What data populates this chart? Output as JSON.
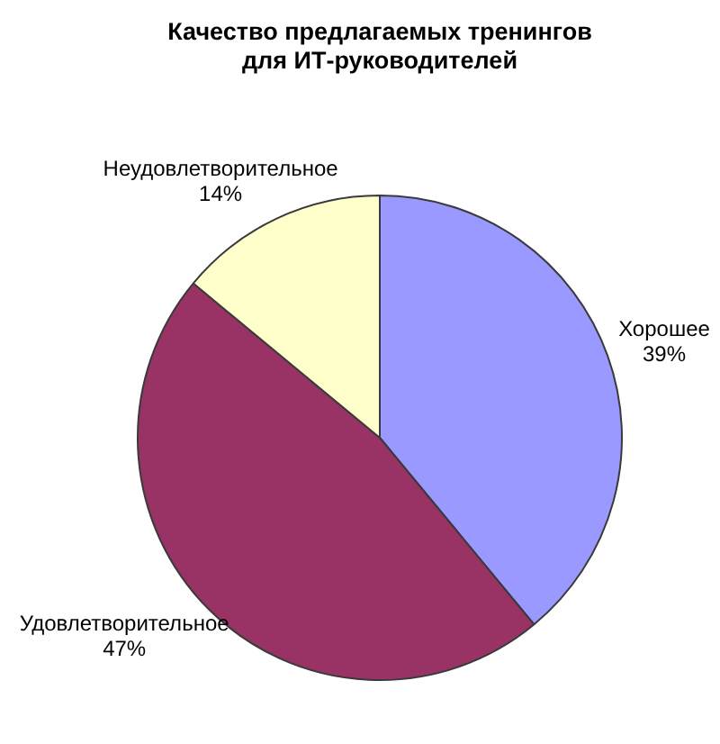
{
  "chart_data": {
    "type": "pie",
    "title": "Качество предлагаемых тренингов для ИТ-руководителей",
    "categories": [
      "Хорошее",
      "Удовлетворительное",
      "Неудовлетворительное"
    ],
    "values": [
      39,
      47,
      14
    ],
    "colors": [
      "#9999ff",
      "#993366",
      "#ffffcc"
    ],
    "value_labels": [
      "39%",
      "47%",
      "14%"
    ]
  }
}
